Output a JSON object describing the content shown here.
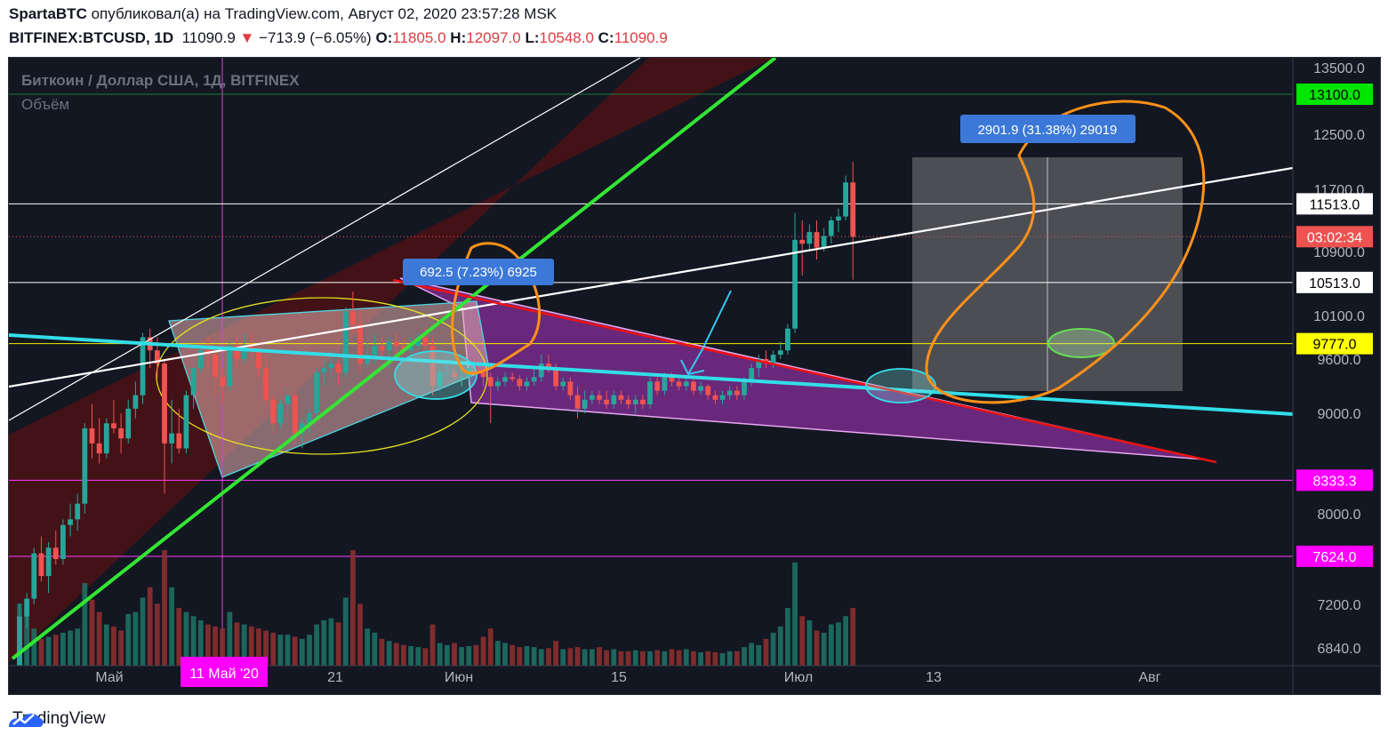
{
  "header": {
    "publisher": "SpartaBTC",
    "published_text": "опубликовал(а) на TradingView.com, Август 02, 2020 23:57:28 MSK",
    "symbol": "BITFINEX:BTCUSD, 1D",
    "last": "11090.9",
    "change": "−713.9 (−6.05%)",
    "o_label": "O:",
    "o": "11805.0",
    "h_label": "H:",
    "h": "12097.0",
    "l_label": "L:",
    "l": "10548.0",
    "c_label": "C:",
    "c": "11090.9"
  },
  "legend": {
    "title": "Биткоин / Доллар США, 1Д, BITFINEX",
    "volume": "Объём"
  },
  "footer": {
    "brand": "TradingView",
    "icon": "tradingview-logo-icon"
  },
  "colors": {
    "up": "#26a69a",
    "down": "#ef5350",
    "bg": "#131722",
    "accent": "#2962ff"
  },
  "chart_data": {
    "type": "candlestick",
    "title": "Биткоин / Доллар США, 1Д, BITFINEX",
    "ylim": [
      6700,
      13600
    ],
    "y_ticks": [
      "13500.0",
      "12500.0",
      "11700.0",
      "10900.0",
      "10100.0",
      "9600.0",
      "9000.0",
      "8000.0",
      "7200.0",
      "6840.0"
    ],
    "x_ticks": [
      "Май",
      "21",
      "Июн",
      "15",
      "Июл",
      "13",
      "Авг"
    ],
    "x_highlight": "11 Май '20",
    "price_labels": [
      {
        "text": "13100.0",
        "color": "#00e600",
        "text_color": "#000000"
      },
      {
        "text": "11513.0",
        "color": "#ffffff",
        "text_color": "#000000"
      },
      {
        "text": "03:02:34",
        "color": "#ef5350",
        "text_color": "#ffffff"
      },
      {
        "text": "10513.0",
        "color": "#ffffff",
        "text_color": "#000000"
      },
      {
        "text": "9777.0",
        "color": "#ffff00",
        "text_color": "#000000"
      },
      {
        "text": "8333.3",
        "color": "#ff00ff",
        "text_color": "#ffffff"
      },
      {
        "text": "7624.0",
        "color": "#ff00ff",
        "text_color": "#ffffff"
      }
    ],
    "measure_labels": [
      "692.5 (7.23%) 6925",
      "2901.9 (31.38%) 29019"
    ],
    "candles": [
      [
        6640,
        7210,
        6600,
        7100
      ],
      [
        7100,
        7300,
        7000,
        7250
      ],
      [
        7250,
        7700,
        7200,
        7650
      ],
      [
        7650,
        7800,
        7400,
        7450
      ],
      [
        7450,
        7750,
        7300,
        7700
      ],
      [
        7700,
        7850,
        7550,
        7600
      ],
      [
        7600,
        7950,
        7550,
        7900
      ],
      [
        7900,
        8100,
        7800,
        7950
      ],
      [
        7950,
        8200,
        7850,
        8100
      ],
      [
        8100,
        8900,
        8000,
        8850
      ],
      [
        8850,
        9100,
        8550,
        8700
      ],
      [
        8700,
        8950,
        8500,
        8600
      ],
      [
        8600,
        8950,
        8550,
        8900
      ],
      [
        8900,
        9150,
        8800,
        8850
      ],
      [
        8850,
        9000,
        8600,
        8750
      ],
      [
        8750,
        9150,
        8700,
        9050
      ],
      [
        9050,
        9350,
        8950,
        9200
      ],
      [
        9200,
        9900,
        9100,
        9850
      ],
      [
        9850,
        9950,
        9500,
        9700
      ],
      [
        9700,
        9850,
        9400,
        9550
      ],
      [
        9550,
        9600,
        8200,
        8700
      ],
      [
        8700,
        9150,
        8500,
        8800
      ],
      [
        8800,
        9050,
        8600,
        8650
      ],
      [
        8650,
        9250,
        8600,
        9200
      ],
      [
        9200,
        9600,
        9050,
        9500
      ],
      [
        9500,
        9750,
        9450,
        9700
      ],
      [
        9700,
        9850,
        9500,
        9650
      ],
      [
        9650,
        9750,
        9200,
        9400
      ],
      [
        9400,
        9500,
        9100,
        9300
      ],
      [
        9300,
        9800,
        9250,
        9750
      ],
      [
        9750,
        9850,
        9500,
        9600
      ],
      [
        9600,
        9900,
        9550,
        9750
      ],
      [
        9750,
        9900,
        9650,
        9700
      ],
      [
        9700,
        9800,
        9400,
        9500
      ],
      [
        9500,
        9650,
        9100,
        9150
      ],
      [
        9150,
        9200,
        8800,
        8900
      ],
      [
        8900,
        9150,
        8850,
        9100
      ],
      [
        9100,
        9300,
        9000,
        9200
      ],
      [
        9200,
        9250,
        8700,
        8800
      ],
      [
        8800,
        8950,
        8650,
        8900
      ],
      [
        8900,
        9050,
        8800,
        9000
      ],
      [
        9000,
        9500,
        8950,
        9450
      ],
      [
        9450,
        9600,
        9300,
        9500
      ],
      [
        9500,
        9700,
        9400,
        9550
      ],
      [
        9550,
        9600,
        9300,
        9450
      ],
      [
        9450,
        10200,
        9400,
        10150
      ],
      [
        10150,
        10400,
        9900,
        10000
      ],
      [
        10000,
        10150,
        9450,
        9550
      ],
      [
        9550,
        9800,
        9500,
        9650
      ],
      [
        9650,
        9900,
        9550,
        9750
      ],
      [
        9750,
        9850,
        9600,
        9700
      ],
      [
        9700,
        9850,
        9500,
        9800
      ],
      [
        9800,
        9900,
        9650,
        9750
      ],
      [
        9750,
        9850,
        9650,
        9700
      ],
      [
        9700,
        9850,
        9600,
        9750
      ],
      [
        9750,
        9900,
        9700,
        9850
      ],
      [
        9850,
        9950,
        9700,
        9750
      ],
      [
        9750,
        9850,
        9200,
        9300
      ],
      [
        9300,
        9500,
        9250,
        9450
      ],
      [
        9450,
        9550,
        9400,
        9450
      ],
      [
        9450,
        9500,
        9350,
        9400
      ],
      [
        9400,
        9500,
        9300,
        9400
      ],
      [
        9400,
        9550,
        9350,
        9500
      ],
      [
        9500,
        9600,
        9400,
        9450
      ],
      [
        9450,
        9500,
        9300,
        9400
      ],
      [
        9400,
        9450,
        8900,
        9300
      ],
      [
        9300,
        9400,
        9250,
        9350
      ],
      [
        9350,
        9450,
        9300,
        9400
      ],
      [
        9400,
        9450,
        9350,
        9380
      ],
      [
        9380,
        9420,
        9250,
        9300
      ],
      [
        9300,
        9400,
        9250,
        9350
      ],
      [
        9350,
        9500,
        9300,
        9400
      ],
      [
        9400,
        9650,
        9350,
        9550
      ],
      [
        9550,
        9650,
        9450,
        9500
      ],
      [
        9500,
        9550,
        9250,
        9300
      ],
      [
        9300,
        9400,
        9250,
        9350
      ],
      [
        9350,
        9400,
        9150,
        9200
      ],
      [
        9200,
        9300,
        8950,
        9050
      ],
      [
        9050,
        9250,
        9000,
        9150
      ],
      [
        9150,
        9250,
        9100,
        9200
      ],
      [
        9200,
        9250,
        9100,
        9150
      ],
      [
        9150,
        9250,
        9050,
        9100
      ],
      [
        9100,
        9250,
        9050,
        9200
      ],
      [
        9200,
        9250,
        9100,
        9150
      ],
      [
        9150,
        9200,
        9050,
        9100
      ],
      [
        9100,
        9200,
        9000,
        9150
      ],
      [
        9150,
        9200,
        9050,
        9100
      ],
      [
        9100,
        9400,
        9050,
        9350
      ],
      [
        9350,
        9400,
        9200,
        9250
      ],
      [
        9250,
        9450,
        9200,
        9400
      ],
      [
        9400,
        9450,
        9300,
        9350
      ],
      [
        9350,
        9400,
        9250,
        9300
      ],
      [
        9300,
        9400,
        9250,
        9350
      ],
      [
        9350,
        9400,
        9200,
        9250
      ],
      [
        9250,
        9350,
        9200,
        9300
      ],
      [
        9300,
        9320,
        9150,
        9200
      ],
      [
        9200,
        9250,
        9100,
        9150
      ],
      [
        9150,
        9250,
        9100,
        9200
      ],
      [
        9200,
        9300,
        9150,
        9250
      ],
      [
        9250,
        9300,
        9150,
        9200
      ],
      [
        9200,
        9400,
        9150,
        9350
      ],
      [
        9350,
        9550,
        9300,
        9500
      ],
      [
        9500,
        9650,
        9400,
        9600
      ],
      [
        9600,
        9700,
        9500,
        9550
      ],
      [
        9550,
        9700,
        9500,
        9650
      ],
      [
        9650,
        9800,
        9600,
        9700
      ],
      [
        9700,
        10000,
        9650,
        9950
      ],
      [
        9950,
        11400,
        9900,
        11050
      ],
      [
        11050,
        11300,
        10600,
        11000
      ],
      [
        11000,
        11250,
        10900,
        11150
      ],
      [
        11150,
        11300,
        10800,
        10950
      ],
      [
        10950,
        11200,
        10900,
        11100
      ],
      [
        11100,
        11350,
        11000,
        11300
      ],
      [
        11300,
        11450,
        11150,
        11350
      ],
      [
        11350,
        11900,
        11300,
        11800
      ],
      [
        11800,
        12097,
        10548,
        11090
      ]
    ],
    "volumes": [
      300,
      250,
      180,
      130,
      140,
      150,
      160,
      170,
      180,
      400,
      320,
      260,
      200,
      190,
      170,
      250,
      260,
      330,
      380,
      300,
      560,
      380,
      280,
      260,
      240,
      220,
      200,
      190,
      180,
      260,
      210,
      200,
      190,
      180,
      170,
      160,
      150,
      150,
      140,
      130,
      150,
      200,
      220,
      230,
      210,
      330,
      560,
      300,
      180,
      160,
      130,
      120,
      110,
      100,
      95,
      90,
      85,
      200,
      110,
      100,
      110,
      90,
      95,
      100,
      140,
      180,
      120,
      110,
      100,
      90,
      95,
      90,
      80,
      85,
      120,
      80,
      85,
      90,
      80,
      80,
      90,
      75,
      80,
      70,
      70,
      75,
      70,
      70,
      75,
      70,
      80,
      75,
      80,
      70,
      65,
      70,
      65,
      60,
      70,
      70,
      90,
      110,
      100,
      130,
      160,
      190,
      280,
      500,
      240,
      220,
      170,
      160,
      200,
      210,
      240,
      280
    ],
    "annotations": {
      "horizontal_levels": [
        13100.0,
        11513.0,
        10513.0,
        9777.0,
        8333.3,
        7624.0
      ]
    }
  }
}
